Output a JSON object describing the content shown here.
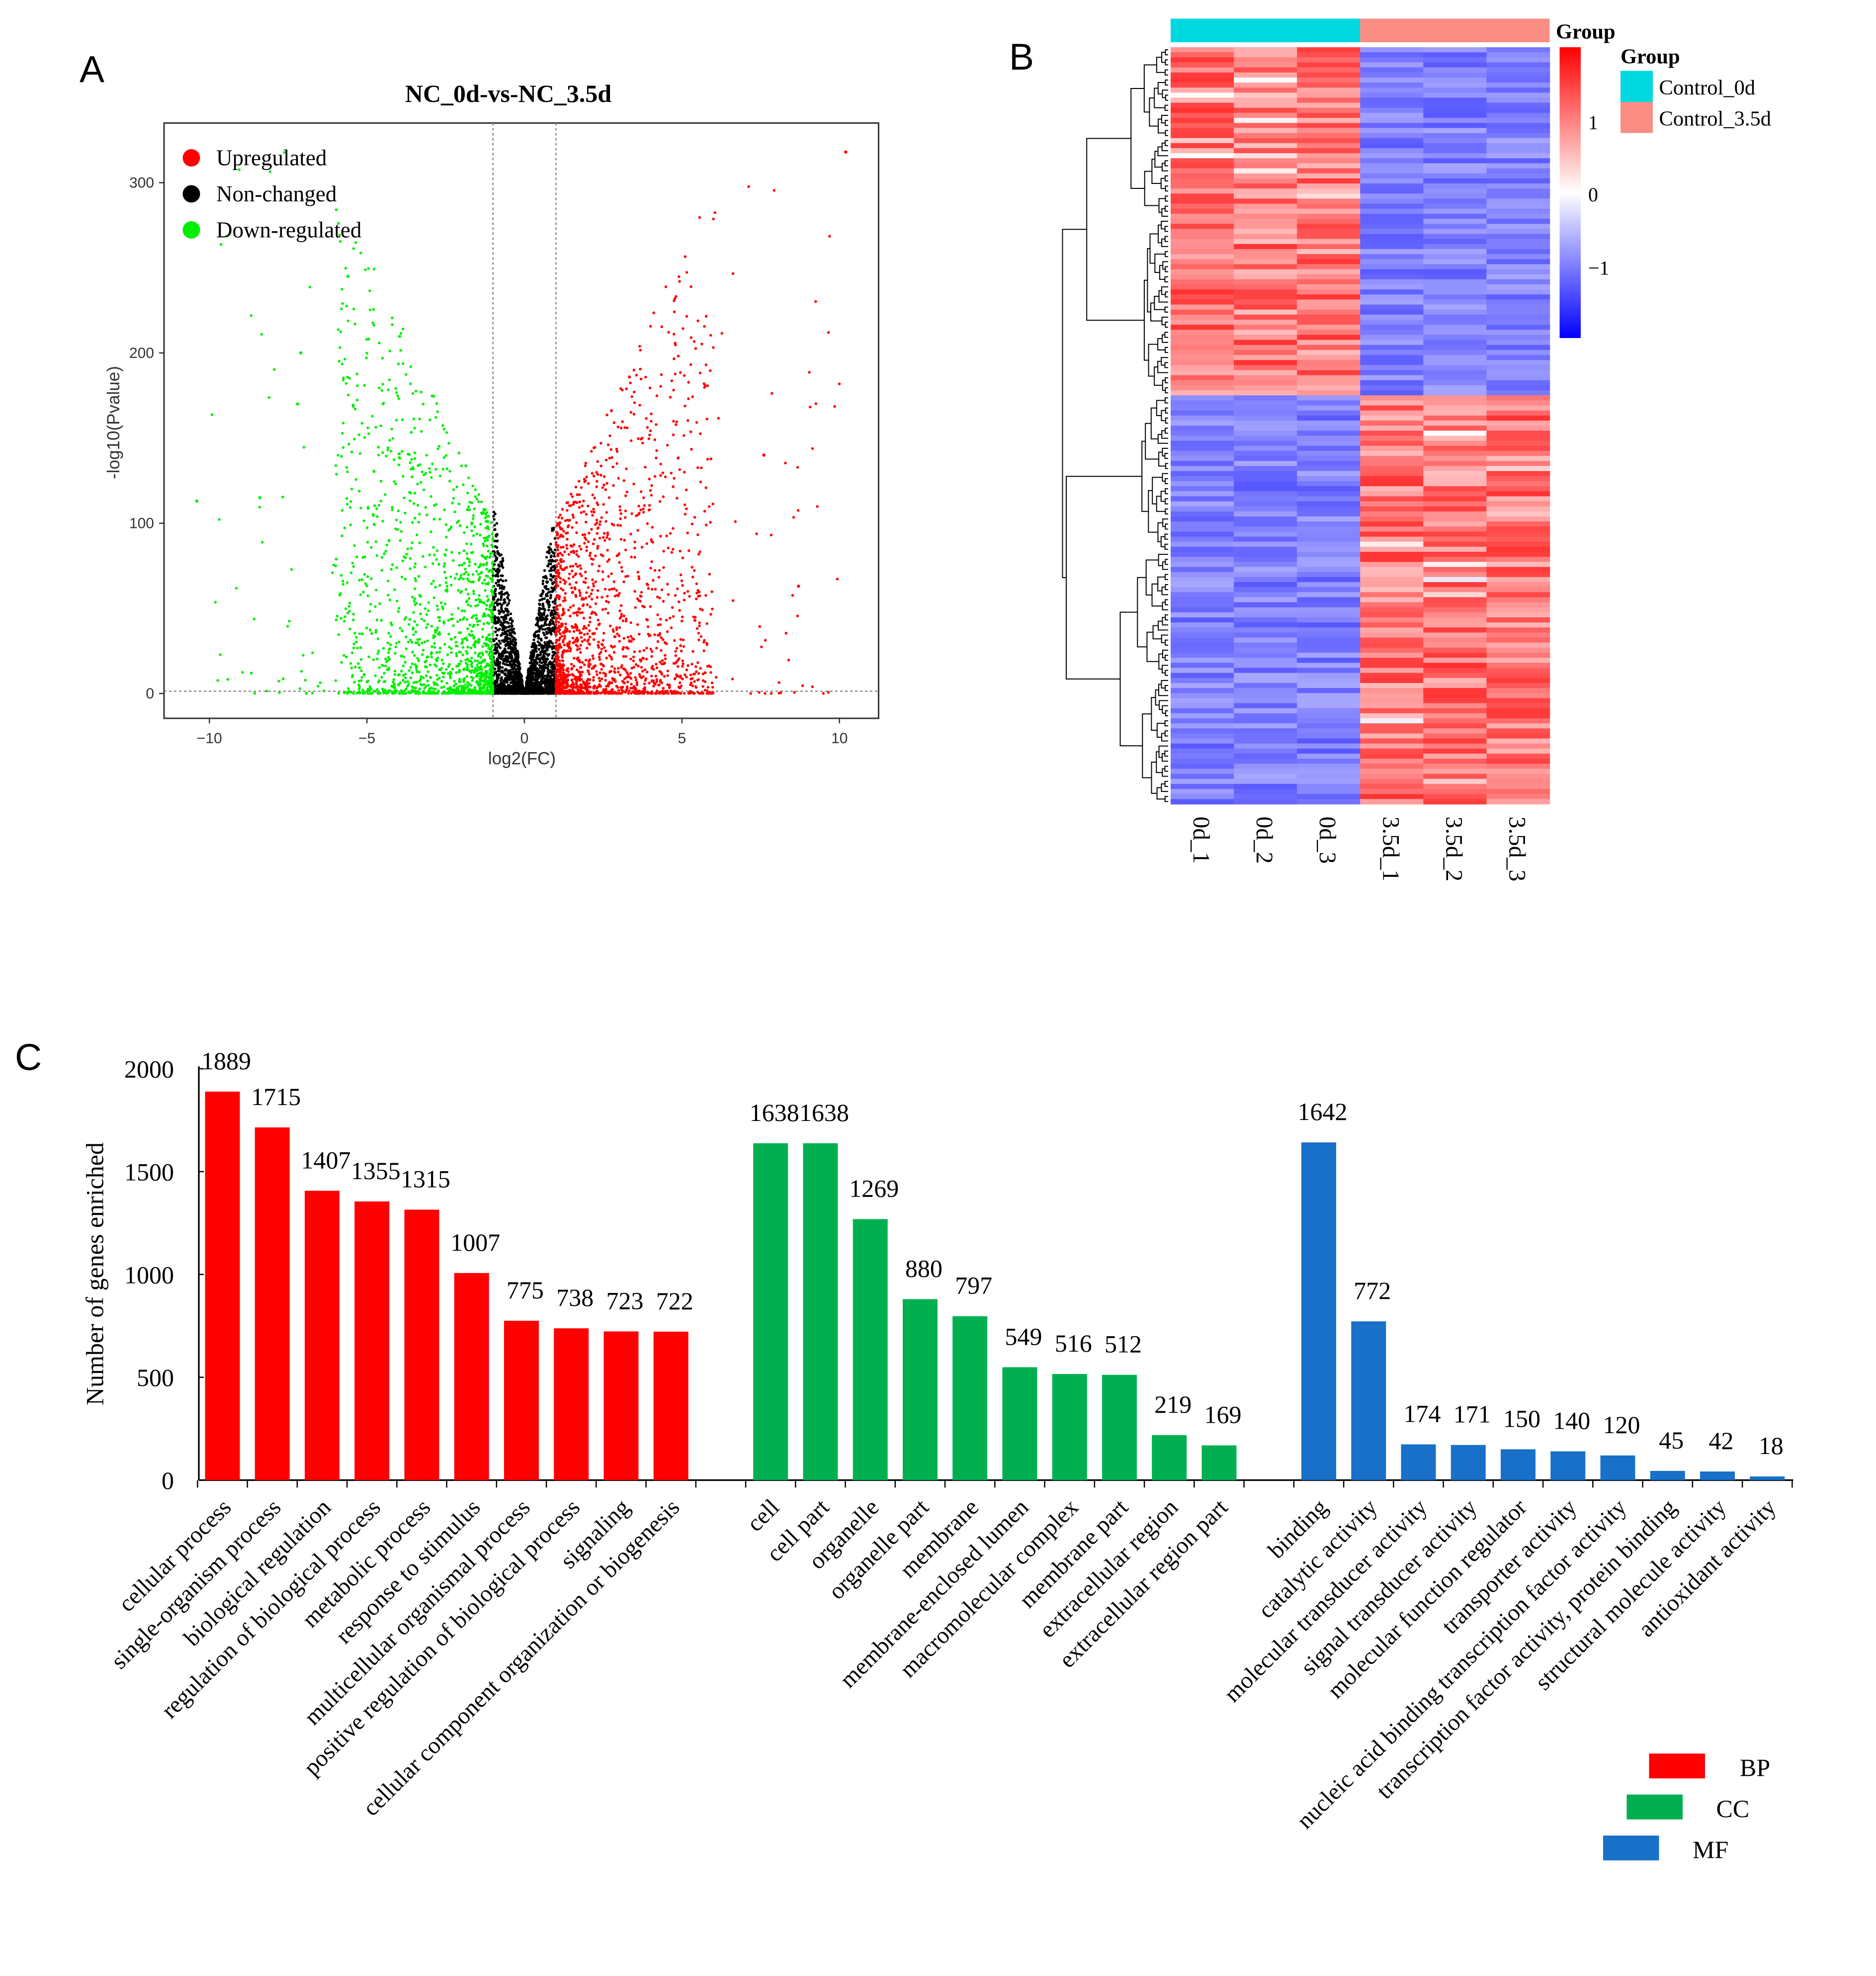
{
  "panels": {
    "a": "A",
    "b": "B",
    "c": "C"
  },
  "chart_data": [
    {
      "type": "scatter",
      "title": "NC_0d-vs-NC_3.5d",
      "xlabel": "log2(FC)",
      "ylabel": "-log10(Pvalue)",
      "xlim": [
        -11.5,
        11.2
      ],
      "ylim": [
        -8,
        320
      ],
      "xticks": [
        "-10",
        "-5",
        "0",
        "5",
        "10"
      ],
      "yticks": [
        "0",
        "100",
        "200",
        "300"
      ],
      "thresholds": {
        "log2fc": [
          -1,
          1
        ],
        "neg_log10_p": 1.3
      },
      "legend": {
        "placement": "top-left",
        "entries": [
          {
            "label": "Upregulated",
            "color": "#ff0000"
          },
          {
            "label": "Non-changed",
            "color": "#000000"
          },
          {
            "label": "Down-regulated",
            "color": "#00ee00"
          }
        ]
      }
    },
    {
      "type": "heatmap",
      "columns": [
        "0d_1",
        "0d_2",
        "0d_3",
        "3.5d_1",
        "3.5d_2",
        "3.5d_3"
      ],
      "annotation_title": "Group",
      "groups": [
        {
          "label": "Control_0d",
          "color": "#00d8e0"
        },
        {
          "label": "Control_3.5d",
          "color": "#fa8e85"
        }
      ],
      "colorbar": {
        "ticks": [
          "1",
          "0",
          "−1"
        ],
        "range": [
          -1.6,
          1.6
        ],
        "low": "#0000ff",
        "mid": "#ffffff",
        "high": "#ff0000"
      },
      "legend_title": "Group"
    },
    {
      "type": "bar",
      "ylabel": "Number of genes enriched",
      "ylim": [
        0,
        2000
      ],
      "yticks": [
        "0",
        "500",
        "1000",
        "1500",
        "2000"
      ],
      "series": [
        {
          "name": "BP",
          "color": "#ff0000",
          "categories": [
            "cellular process",
            "single-organism process",
            "biological regulation",
            "regulation of biological process",
            "metabolic process",
            "response to stimulus",
            "multicellular organismal process",
            "positive regulation of biological process",
            "signaling",
            "cellular component organization or biogenesis"
          ],
          "values": [
            1889,
            1715,
            1407,
            1355,
            1315,
            1007,
            775,
            738,
            723,
            722
          ]
        },
        {
          "name": "CC",
          "color": "#00b050",
          "categories": [
            "cell",
            "cell part",
            "organelle",
            "organelle part",
            "membrane",
            "membrane-enclosed lumen",
            "macromolecular complex",
            "membrane part",
            "extracellular region",
            "extracellular region part"
          ],
          "values": [
            1638,
            1638,
            1269,
            880,
            797,
            549,
            516,
            512,
            219,
            169
          ]
        },
        {
          "name": "MF",
          "color": "#1870c8",
          "categories": [
            "binding",
            "catalytic activity",
            "molecular transducer activity",
            "signal transducer activity",
            "molecular function regulator",
            "transporter activity",
            "nucleic acid binding transcription factor activity",
            "transcription factor activity, protein binding",
            "structural molecule activity",
            "antioxidant activity"
          ],
          "values": [
            1642,
            772,
            174,
            171,
            150,
            140,
            120,
            45,
            42,
            18
          ]
        }
      ],
      "legend": {
        "placement": "bottom-right",
        "entries": [
          "BP",
          "CC",
          "MF"
        ]
      }
    }
  ]
}
